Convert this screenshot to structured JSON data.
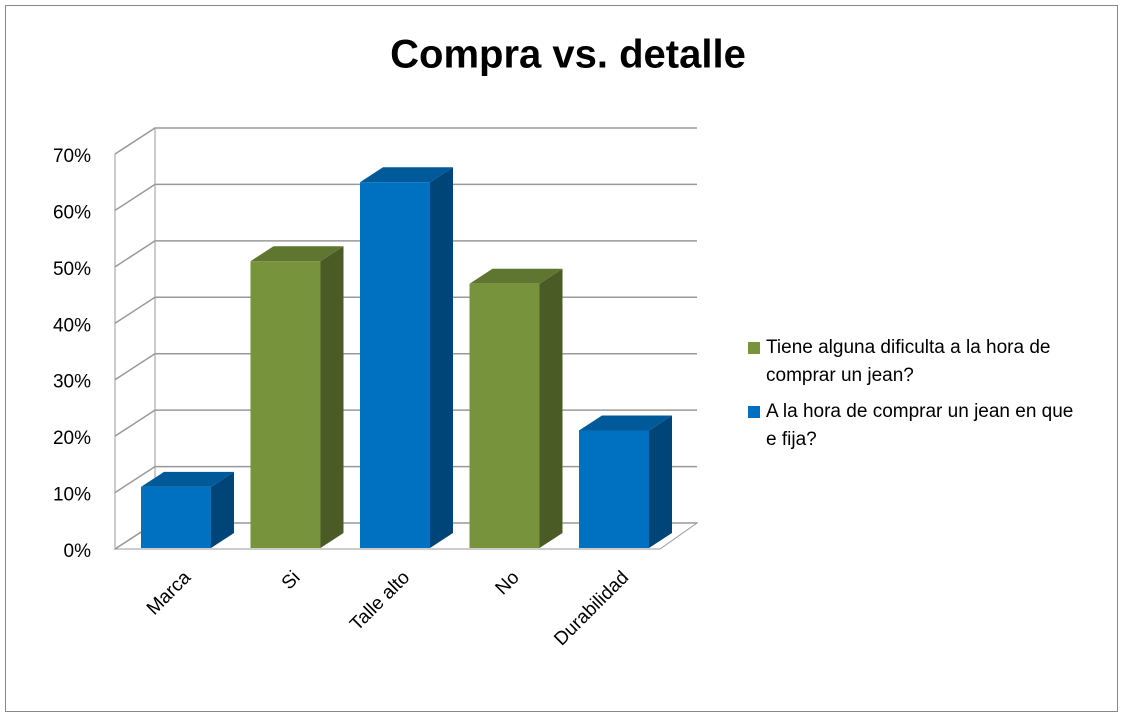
{
  "chart_data": {
    "type": "bar3d",
    "title": "Compra vs. detalle",
    "categories": [
      "Marca",
      "Si",
      "Talle alto",
      "No",
      "Durabilidad"
    ],
    "series": [
      {
        "name": "Tiene alguna dificulta a la hora de comprar un jean?",
        "color": "#77933c",
        "values": [
          null,
          51,
          null,
          47,
          null
        ]
      },
      {
        "name": "A la hora de comprar un jean en que e fija?",
        "color": "#0070c0",
        "values": [
          11,
          null,
          65,
          null,
          21
        ]
      }
    ],
    "ylim": [
      0,
      70
    ],
    "yticks": [
      {
        "value": 0,
        "label": "0%"
      },
      {
        "value": 10,
        "label": "10%"
      },
      {
        "value": 20,
        "label": "20%"
      },
      {
        "value": 30,
        "label": "30%"
      },
      {
        "value": 40,
        "label": "40%"
      },
      {
        "value": 50,
        "label": "50%"
      },
      {
        "value": 60,
        "label": "60%"
      },
      {
        "value": 70,
        "label": "70%"
      }
    ],
    "grid": true,
    "legend": "right"
  }
}
